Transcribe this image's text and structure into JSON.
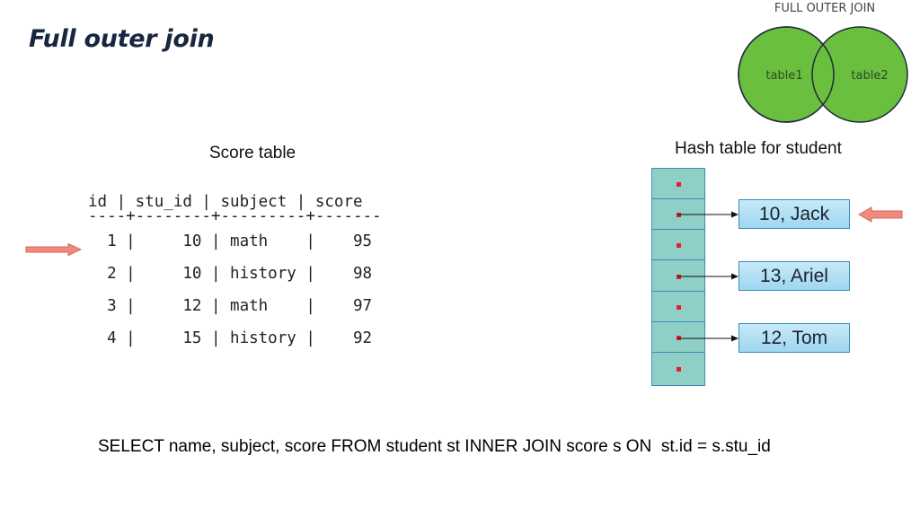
{
  "slide": {
    "title": "Full outer join"
  },
  "venn": {
    "label": "FULL OUTER JOIN",
    "left": "table1",
    "right": "table2",
    "fill": "#6abf3f",
    "stroke": "#1f2a3a"
  },
  "score_table": {
    "caption": "Score table",
    "header": "id | stu_id | subject | score",
    "separator": "----+--------+---------+-------",
    "rows": [
      "  1 |     10 | math    |    95",
      "  2 |     10 | history |    98",
      "  3 |     12 | math    |    97",
      "  4 |     15 | history |    92"
    ]
  },
  "hash_table": {
    "caption": "Hash table for student",
    "bucket_count": 7,
    "nodes": [
      "10, Jack",
      "13, Ariel",
      "12, Tom"
    ]
  },
  "query": {
    "text": "SELECT name, subject, score FROM student st INNER JOIN score s ON  st.id = s.stu_id"
  },
  "colors": {
    "arrow": "#f08a7e",
    "bucket": "#8ecfc6",
    "node": "#b5e1f6",
    "dot": "#e0202a"
  }
}
